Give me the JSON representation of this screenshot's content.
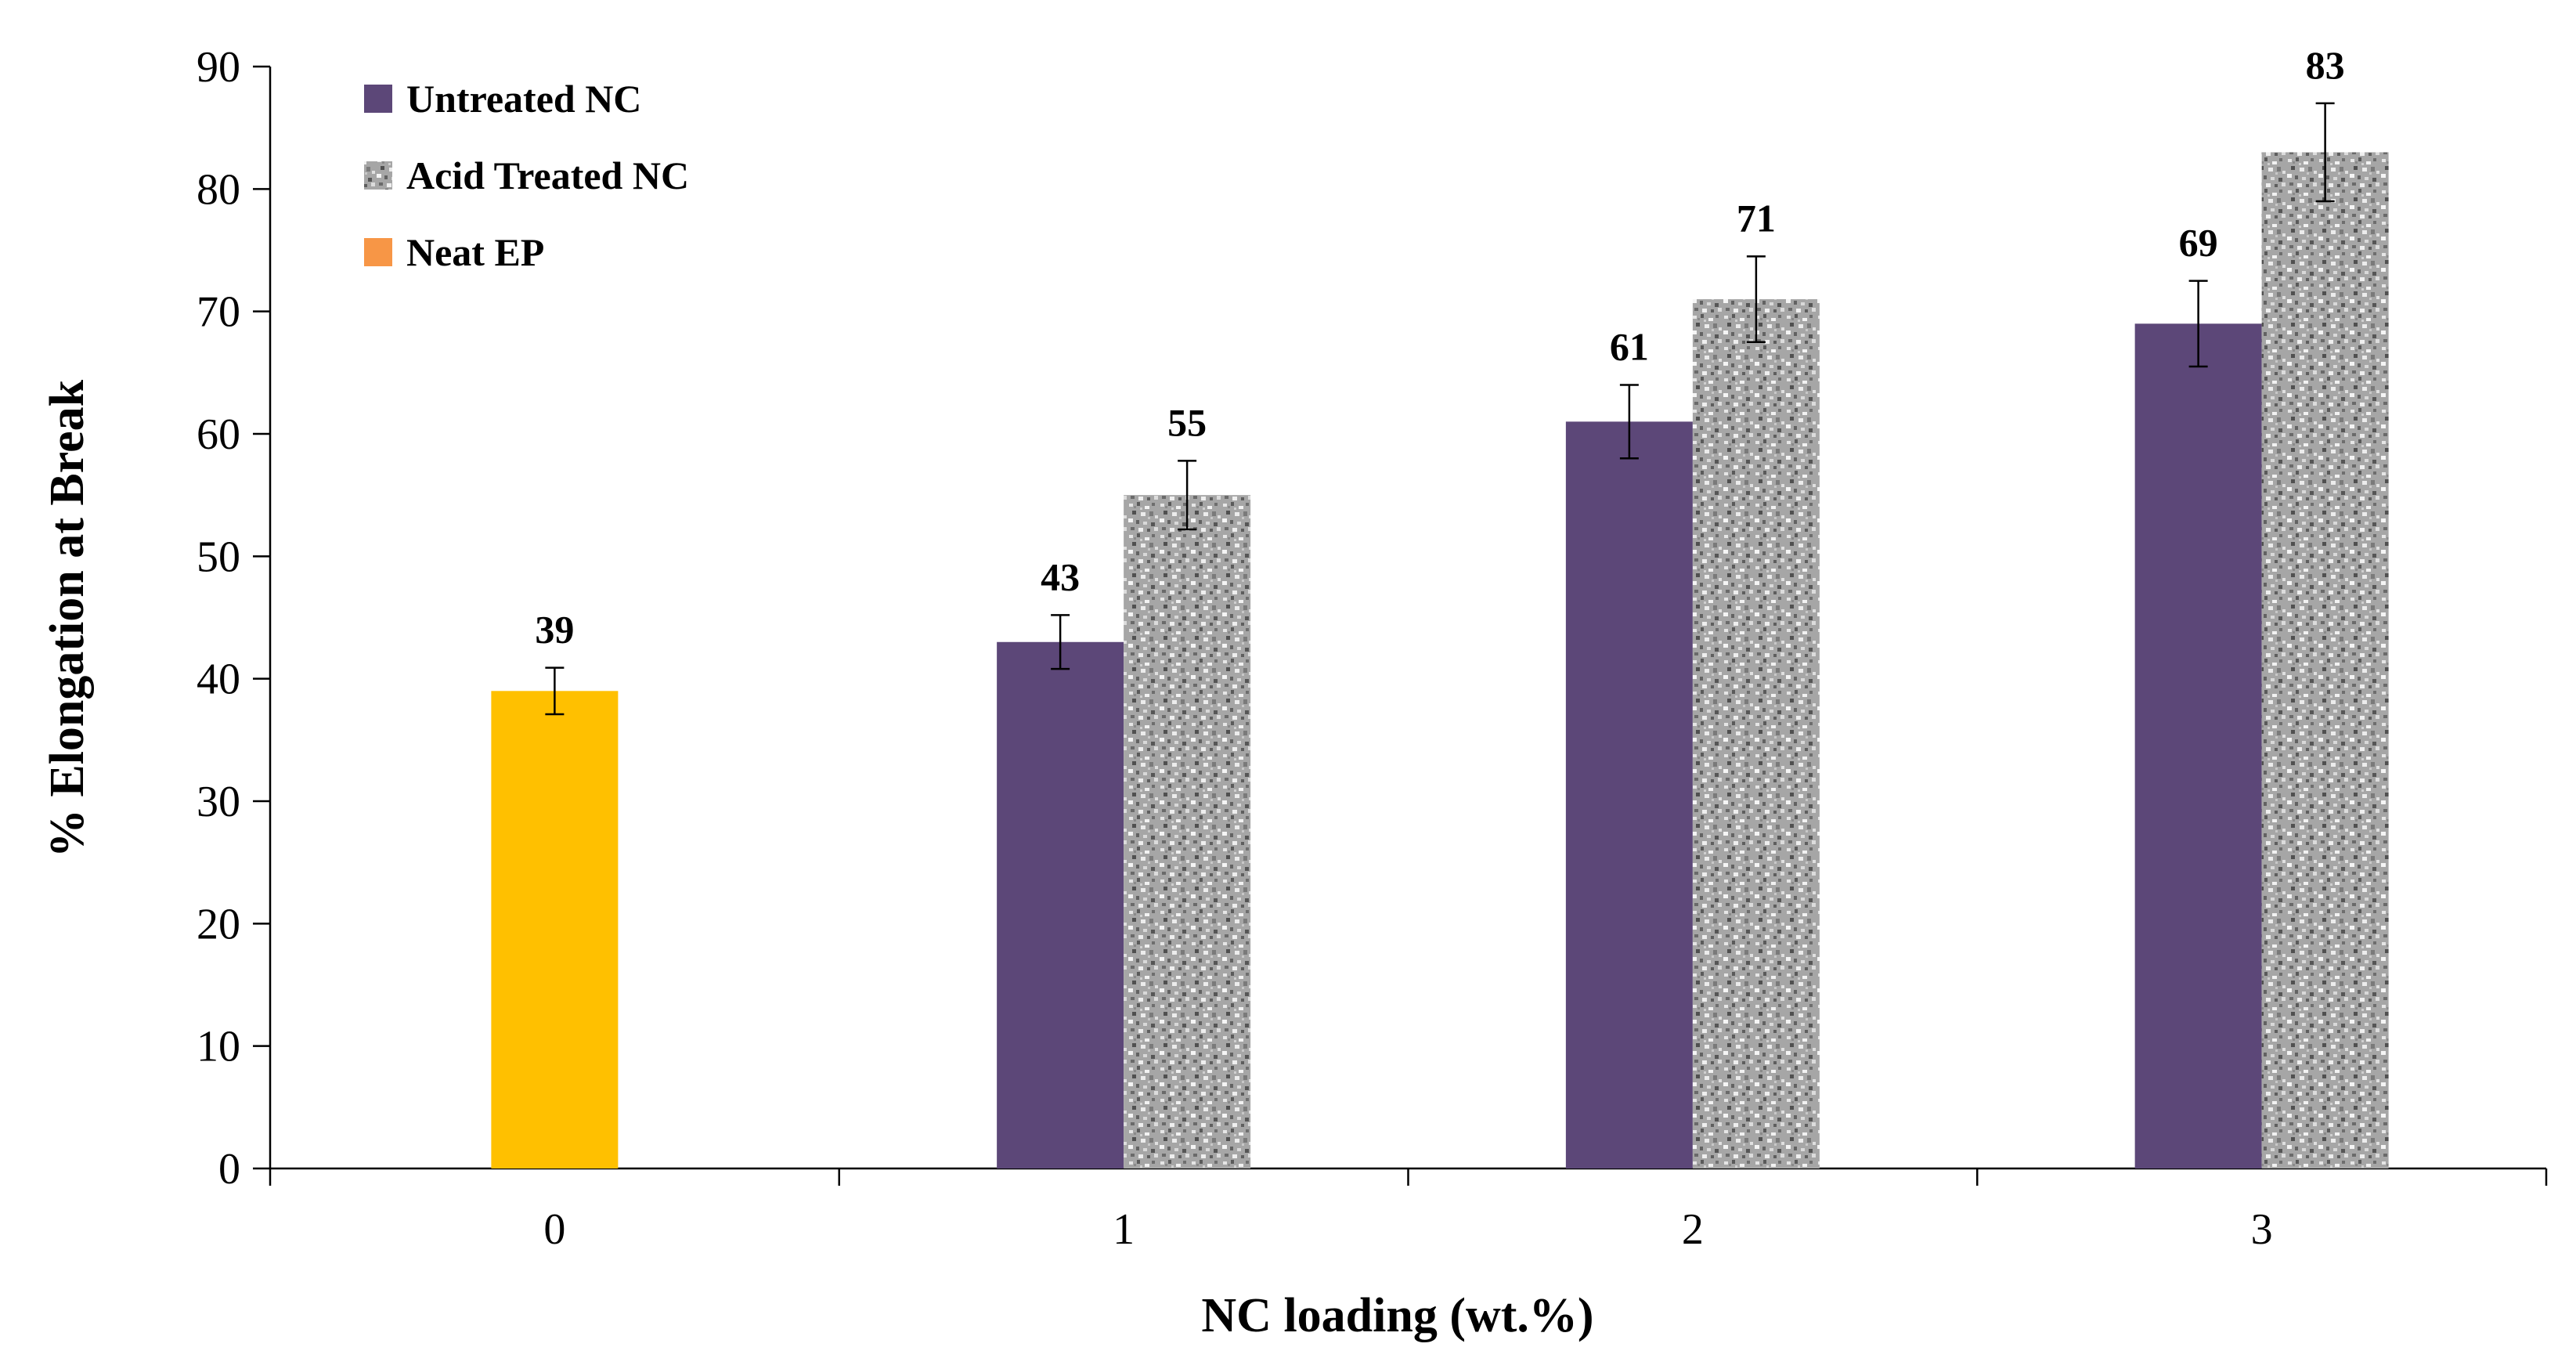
{
  "chart_data": {
    "type": "bar",
    "title": "",
    "xlabel": "NC loading (wt.%)",
    "ylabel": "% Elongation at Break",
    "ylim": [
      0,
      90
    ],
    "yticks": [
      "0",
      "10",
      "20",
      "30",
      "40",
      "50",
      "60",
      "70",
      "80",
      "90"
    ],
    "categories": [
      "0",
      "1",
      "2",
      "3"
    ],
    "legend_position": "top-left",
    "series": [
      {
        "name": "Untreated NC",
        "color": "#5c4778",
        "pattern": "solid",
        "values": [
          null,
          43,
          61,
          69
        ],
        "errors": [
          null,
          2.2,
          3,
          3.5
        ]
      },
      {
        "name": "Acid Treated NC",
        "color": "#a9a9a9",
        "pattern": "speckle",
        "values": [
          null,
          55,
          71,
          83
        ],
        "errors": [
          null,
          2.8,
          3.5,
          4
        ]
      },
      {
        "name": "Neat EP",
        "color": "#ffc000",
        "legend_color": "#f79646",
        "pattern": "solid",
        "values": [
          39,
          null,
          null,
          null
        ],
        "errors": [
          1.9,
          null,
          null,
          null
        ]
      }
    ]
  }
}
